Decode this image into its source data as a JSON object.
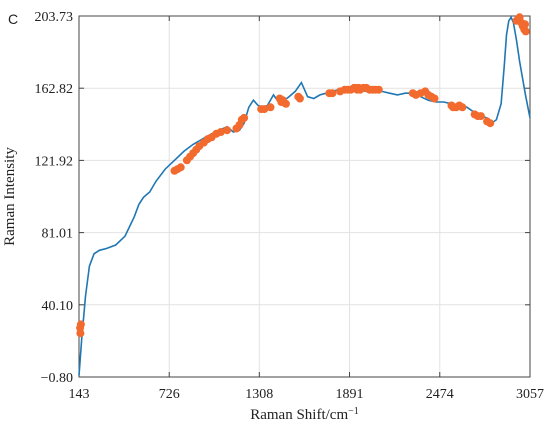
{
  "chart_data": {
    "type": "line",
    "panel_label": "C",
    "title": "",
    "xlabel": "Raman Shift/cm",
    "xlabel_superscript": "−1",
    "ylabel": "Raman Intensity",
    "xlim": [
      143,
      3057
    ],
    "ylim": [
      -0.8,
      203.73
    ],
    "xticks": [
      143,
      726,
      1308,
      1891,
      2474,
      3057
    ],
    "xtick_labels": [
      "143",
      "726",
      "1308",
      "1891",
      "2474",
      "3057"
    ],
    "yticks": [
      -0.8,
      40.1,
      81.01,
      121.92,
      162.82,
      203.73
    ],
    "ytick_labels": [
      "−0.80",
      "40.10",
      "81.01",
      "121.92",
      "162.82",
      "203.73"
    ],
    "grid": true,
    "line_color": "#1f77b4",
    "marker_color": "#f26a2e",
    "series": [
      {
        "kind": "line",
        "x": [
          143,
          160,
          185,
          210,
          240,
          275,
          320,
          380,
          440,
          500,
          530,
          560,
          600,
          640,
          700,
          760,
          820,
          880,
          940,
          1000,
          1050,
          1100,
          1140,
          1180,
          1210,
          1240,
          1270,
          1300,
          1330,
          1360,
          1400,
          1440,
          1470,
          1500,
          1540,
          1580,
          1620,
          1660,
          1700,
          1740,
          1780,
          1820,
          1860,
          1900,
          1950,
          2000,
          2050,
          2100,
          2150,
          2200,
          2250,
          2300,
          2350,
          2400,
          2450,
          2500,
          2550,
          2600,
          2650,
          2700,
          2740,
          2780,
          2810,
          2840,
          2870,
          2890,
          2905,
          2920,
          2935,
          2950,
          2970,
          2990,
          3010,
          3030,
          3057
        ],
        "y": [
          0,
          20,
          45,
          62,
          69,
          71,
          72,
          74,
          79,
          90,
          97,
          101,
          104,
          110,
          117,
          122,
          127,
          131,
          134,
          137,
          139,
          141,
          138,
          139,
          143,
          152,
          156,
          153,
          152,
          153,
          159,
          154,
          156,
          158,
          161,
          166,
          158,
          157,
          159,
          160,
          161,
          162,
          163,
          163,
          162,
          161,
          162,
          161,
          160,
          159,
          160,
          160,
          158,
          156,
          155,
          155,
          154,
          153,
          152,
          149,
          147,
          146,
          143,
          145,
          154,
          175,
          193,
          201,
          203,
          200,
          190,
          178,
          168,
          158,
          146
        ]
      },
      {
        "kind": "scatter",
        "x": [
          150,
          152,
          155,
          760,
          780,
          800,
          840,
          860,
          880,
          900,
          920,
          950,
          975,
          1000,
          1030,
          1060,
          1100,
          1160,
          1180,
          1195,
          1210,
          1320,
          1340,
          1380,
          1440,
          1450,
          1460,
          1480,
          1560,
          1570,
          1760,
          1780,
          1830,
          1860,
          1880,
          1900,
          1920,
          1930,
          1940,
          1950,
          1960,
          1980,
          2000,
          2020,
          2040,
          2060,
          2080,
          2300,
          2320,
          2350,
          2380,
          2400,
          2420,
          2440,
          2550,
          2560,
          2580,
          2600,
          2620,
          2700,
          2720,
          2740,
          2780,
          2800,
          2970,
          2980,
          2990,
          3000,
          3010,
          3020,
          3025,
          3030
        ],
        "y": [
          27,
          24,
          29,
          116,
          117,
          118,
          122,
          124,
          126,
          128,
          130,
          132,
          134,
          135,
          137,
          138,
          139,
          140,
          142,
          145,
          146,
          151,
          151,
          152,
          157,
          155,
          156,
          154,
          158,
          157,
          160,
          160,
          161,
          162,
          162,
          162,
          163,
          163,
          162,
          163,
          162,
          163,
          163,
          162,
          162,
          162,
          162,
          160,
          159,
          160,
          161,
          159,
          158,
          157,
          153,
          152,
          152,
          153,
          152,
          148,
          147,
          147,
          144,
          143,
          201,
          202,
          203,
          200,
          198,
          196,
          199,
          195
        ]
      }
    ]
  }
}
